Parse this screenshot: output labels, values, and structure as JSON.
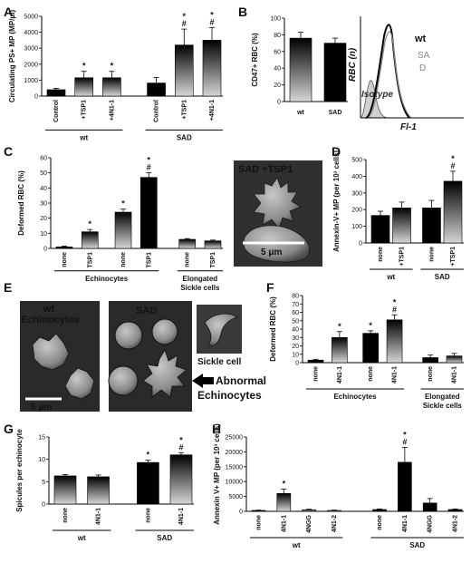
{
  "panels": {
    "A": "A",
    "B": "B",
    "C": "C",
    "D": "D",
    "E": "E",
    "F": "F",
    "G": "G",
    "H": "H"
  },
  "colors": {
    "bar_dark": "#000000",
    "bar_light": "#bdbdbd",
    "isotype_fill": "#d0d0d0"
  },
  "flow": {
    "ylabel": "RBC (n)",
    "xlabel": "Fl-1",
    "legend_wt": "wt",
    "legend_sa": "SA",
    "legend_d": "D",
    "isotype": "Isotype"
  },
  "micro": {
    "c_title": "SAD +TSP1",
    "c_scale": "5 μm",
    "e_wt_label": "wt",
    "e_echino_label": "Echinocytes",
    "e_scale": "5 μm",
    "e_sad_label": "SAD",
    "e_sickle_label": "Sickle cell",
    "e_abnormal_1": "Abnormal",
    "e_abnormal_2": "Echinocytes"
  },
  "chart_data": [
    {
      "panel": "A",
      "type": "bar",
      "ylabel": "Circulating PS+ MP (MP/μl)",
      "ylim": [
        0,
        5000
      ],
      "yticks": [
        0,
        1000,
        2000,
        3000,
        4000,
        5000
      ],
      "categories": [
        "Control",
        "+TSP1",
        "+4N1-1",
        "Control",
        "+TSP1",
        "+4N1-1"
      ],
      "values": [
        400,
        1150,
        1150,
        820,
        3200,
        3500
      ],
      "errors": [
        80,
        400,
        400,
        350,
        1000,
        800
      ],
      "groups": [
        {
          "label": "wt",
          "from": 0,
          "to": 2
        },
        {
          "label": "SAD",
          "from": 3,
          "to": 5
        }
      ],
      "significance": [
        "",
        "*",
        "*",
        "",
        "*\n#",
        "*\n#"
      ]
    },
    {
      "panel": "B",
      "type": "bar",
      "ylabel": "CD47+ RBC (%)",
      "ylim": [
        0,
        100
      ],
      "yticks": [
        0,
        20,
        40,
        60,
        80,
        100
      ],
      "categories": [
        "wt",
        "SAD"
      ],
      "values": [
        76,
        70
      ],
      "errors": [
        7,
        6
      ],
      "groups": [],
      "significance": [
        "",
        ""
      ]
    },
    {
      "panel": "C",
      "type": "bar",
      "ylabel": "Deformed RBC (%)",
      "ylim": [
        0,
        60
      ],
      "yticks": [
        0,
        10,
        20,
        30,
        40,
        50,
        60
      ],
      "categories": [
        "none",
        "TSP1",
        "none",
        "TSP1",
        "none",
        "TSP1"
      ],
      "values": [
        1,
        11,
        24,
        47,
        6,
        5
      ],
      "errors": [
        0.5,
        1.5,
        2,
        3,
        0.5,
        0.5
      ],
      "groups": [
        {
          "label": "Echinocytes",
          "from": 0,
          "to": 3
        },
        {
          "label": "Elongated Sickle cells",
          "from": 4,
          "to": 5
        }
      ],
      "significance": [
        "",
        "*",
        "*",
        "*\n#",
        "",
        ""
      ]
    },
    {
      "panel": "D",
      "type": "bar",
      "ylabel": "Annexin-V+ MP (per 10³ cells)",
      "ylim": [
        0,
        500
      ],
      "yticks": [
        0,
        100,
        200,
        300,
        400,
        500
      ],
      "categories": [
        "none",
        "+TSP1",
        "none",
        "+TSP1"
      ],
      "values": [
        165,
        210,
        210,
        370
      ],
      "errors": [
        25,
        35,
        45,
        60
      ],
      "groups": [
        {
          "label": "wt",
          "from": 0,
          "to": 1
        },
        {
          "label": "SAD",
          "from": 2,
          "to": 3
        }
      ],
      "significance": [
        "",
        "",
        "",
        "*\n#"
      ]
    },
    {
      "panel": "F",
      "type": "bar",
      "ylabel": "Deformed RBC (%)",
      "ylim": [
        0,
        80
      ],
      "yticks": [
        0,
        10,
        20,
        30,
        40,
        50,
        60,
        70,
        80
      ],
      "categories": [
        "none",
        "4N1-1",
        "none",
        "4N1-1",
        "none",
        "4N1-1"
      ],
      "values": [
        3,
        30,
        35,
        51,
        6,
        8
      ],
      "errors": [
        1,
        7,
        3,
        6,
        3,
        3
      ],
      "groups": [
        {
          "label": "Echinocytes",
          "from": 0,
          "to": 3
        },
        {
          "label": "Elongated Sickle cells",
          "from": 4,
          "to": 5
        }
      ],
      "significance": [
        "",
        "*",
        "*",
        "*\n#",
        "",
        ""
      ]
    },
    {
      "panel": "G",
      "type": "bar",
      "ylabel": "Spicules per echinocyte",
      "ylim": [
        0,
        15
      ],
      "yticks": [
        0,
        5,
        10,
        15
      ],
      "categories": [
        "none",
        "4N1-1",
        "none",
        "4N1-1"
      ],
      "values": [
        6.3,
        6.1,
        9.3,
        11
      ],
      "errors": [
        0.3,
        0.4,
        0.5,
        0.5
      ],
      "groups": [
        {
          "label": "wt",
          "from": 0,
          "to": 1
        },
        {
          "label": "SAD",
          "from": 2,
          "to": 3
        }
      ],
      "significance": [
        "",
        "",
        "*",
        "*\n#"
      ]
    },
    {
      "panel": "H",
      "type": "bar",
      "ylabel": "Annexin V+ MP (per 10³ cells)",
      "ylim": [
        0,
        25000
      ],
      "yticks": [
        0,
        5000,
        10000,
        15000,
        20000,
        25000
      ],
      "categories": [
        "none",
        "4N1-1",
        "4NGG",
        "4N1-2",
        "none",
        "4N1-1",
        "4NGG",
        "4N1-2"
      ],
      "values": [
        300,
        6000,
        500,
        300,
        600,
        16500,
        2800,
        600
      ],
      "errors": [
        100,
        1500,
        200,
        100,
        200,
        5000,
        1500,
        200
      ],
      "groups": [
        {
          "label": "wt",
          "from": 0,
          "to": 3
        },
        {
          "label": "SAD",
          "from": 4,
          "to": 7
        }
      ],
      "significance": [
        "",
        "*",
        "",
        "",
        "",
        "*\n#",
        "",
        ""
      ]
    }
  ]
}
